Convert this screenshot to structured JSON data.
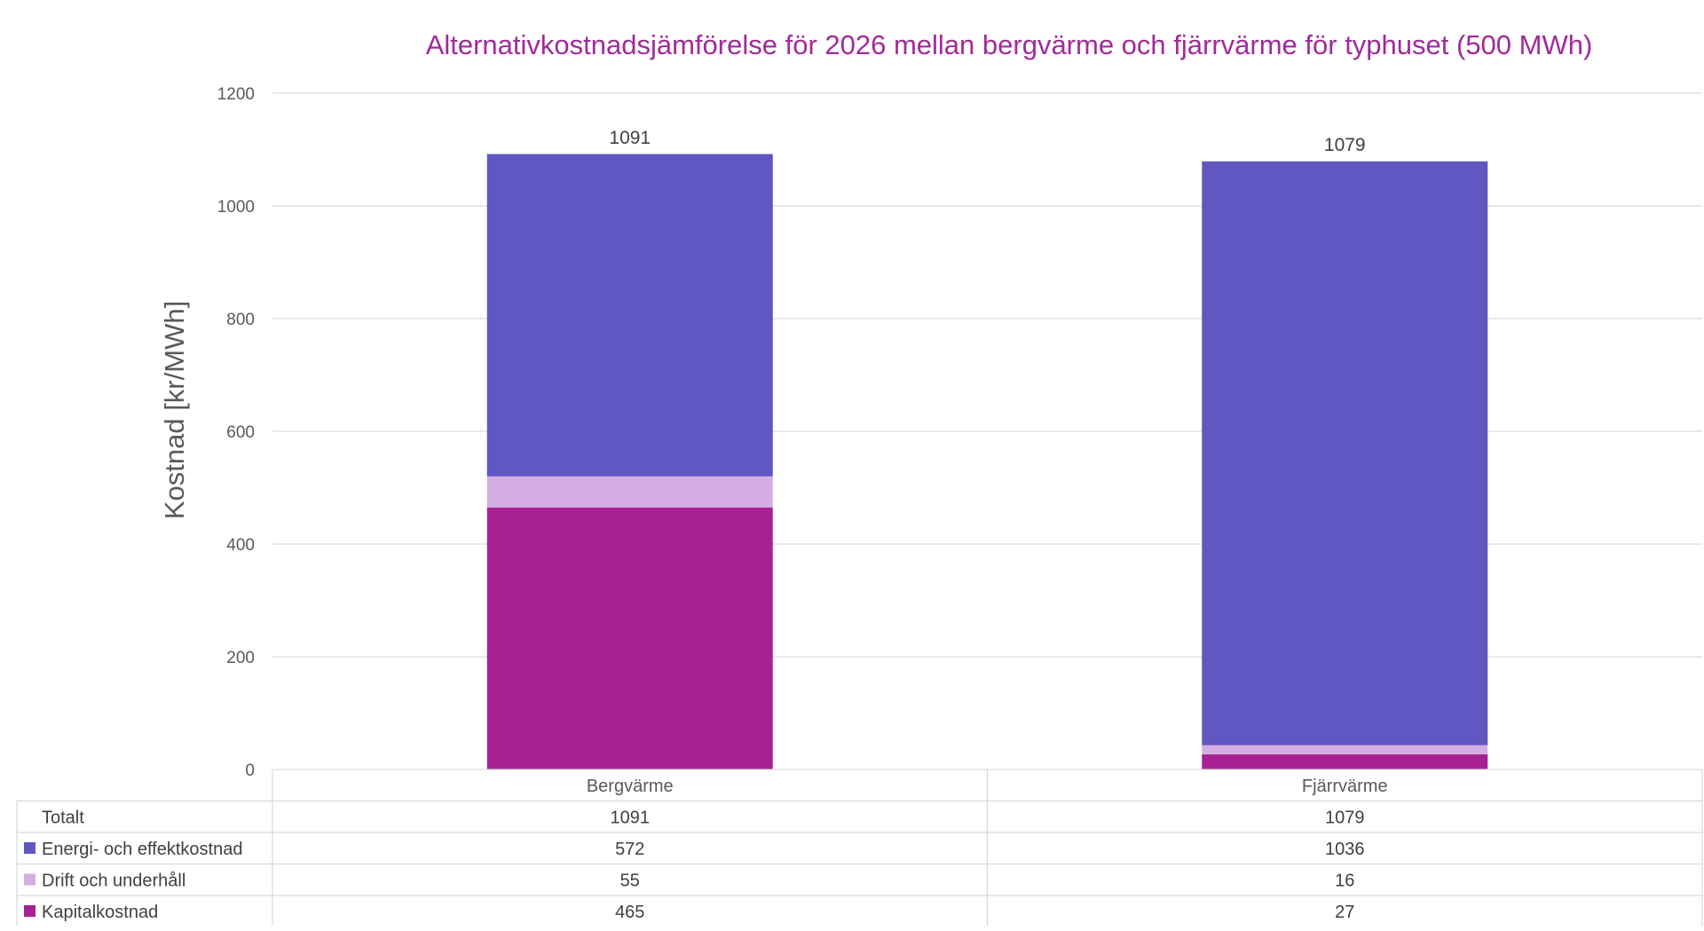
{
  "chart_data": {
    "type": "bar",
    "stacked": true,
    "title": "Alternativkostnadsjämförelse för 2026 mellan bergvärme och fjärrvärme för typhuset (500 MWh)",
    "xlabel": "",
    "ylabel": "Kostnad [kr/MWh]",
    "ylim": [
      0,
      1200
    ],
    "yticks": [
      "0",
      "200",
      "400",
      "600",
      "800",
      "1000",
      "1200"
    ],
    "grid": true,
    "legend": "data-table",
    "categories": [
      "Bergvärme",
      "Fjärrvärme"
    ],
    "totals_label": "Totalt",
    "totals": [
      1091,
      1079
    ],
    "series": [
      {
        "name": "Kapitalkostnad",
        "values": [
          465,
          27
        ],
        "color": "#A72193"
      },
      {
        "name": "Drift och underhåll",
        "values": [
          55,
          16
        ],
        "color": "#D4AEE3"
      },
      {
        "name": "Energi- och effektkostnad",
        "values": [
          572,
          1036
        ],
        "color": "#6057C2"
      }
    ],
    "table_row_order": [
      2,
      1,
      0
    ]
  },
  "colors": {
    "title": "#A12A9B",
    "axis_text": "#595959",
    "grid": "#D9D9D9",
    "table_border": "#D9D9D9"
  }
}
